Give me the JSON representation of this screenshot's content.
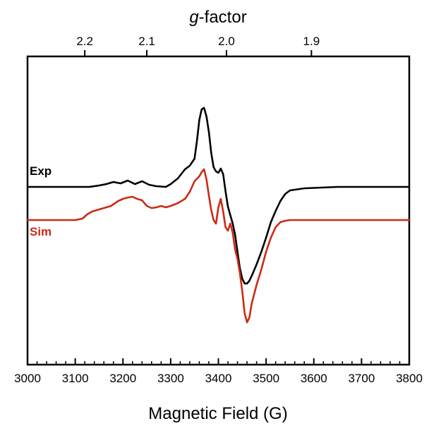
{
  "chart_data": {
    "type": "line",
    "xlabel": "Magnetic Field (G)",
    "x2label_italic": "g",
    "x2label_rest": "-factor",
    "xlim": [
      3000,
      3800
    ],
    "x_ticks": [
      3000,
      3100,
      3200,
      3300,
      3400,
      3500,
      3600,
      3700,
      3800
    ],
    "x_tick_labels": [
      "3000",
      "3100",
      "3200",
      "3300",
      "3400",
      "3500",
      "3600",
      "3700",
      "3800"
    ],
    "g_ticks": [
      2.2,
      2.1,
      2.0,
      1.9
    ],
    "g_tick_labels": [
      "2.2",
      "2.1",
      "2.0",
      "1.9"
    ],
    "g_tick_fields": [
      3120,
      3250,
      3417,
      3595
    ],
    "grid": false,
    "colors": {
      "Exp": "#000000",
      "Sim": "#cc2a14"
    },
    "series": [
      {
        "name": "Exp",
        "x": [
          3000,
          3050,
          3100,
          3130,
          3150,
          3165,
          3180,
          3195,
          3210,
          3225,
          3240,
          3255,
          3270,
          3290,
          3300,
          3315,
          3330,
          3340,
          3350,
          3355,
          3360,
          3365,
          3370,
          3375,
          3380,
          3385,
          3390,
          3395,
          3400,
          3405,
          3410,
          3415,
          3420,
          3425,
          3430,
          3435,
          3440,
          3445,
          3450,
          3455,
          3460,
          3465,
          3470,
          3480,
          3490,
          3500,
          3510,
          3520,
          3530,
          3540,
          3550,
          3580,
          3650,
          3700,
          3800
        ],
        "y": [
          0,
          0,
          0,
          0,
          2,
          4,
          7,
          5,
          9,
          4,
          8,
          3,
          1,
          0,
          4,
          12,
          25,
          30,
          40,
          65,
          95,
          110,
          112,
          100,
          78,
          48,
          28,
          22,
          20,
          26,
          18,
          -6,
          -28,
          -40,
          -52,
          -68,
          -92,
          -115,
          -130,
          -137,
          -137,
          -133,
          -126,
          -110,
          -92,
          -72,
          -50,
          -34,
          -20,
          -10,
          -5,
          -2,
          0,
          0,
          0
        ]
      },
      {
        "name": "Sim",
        "x": [
          3000,
          3100,
          3115,
          3125,
          3135,
          3150,
          3160,
          3175,
          3190,
          3200,
          3210,
          3220,
          3230,
          3240,
          3250,
          3260,
          3270,
          3280,
          3290,
          3300,
          3315,
          3330,
          3340,
          3350,
          3360,
          3365,
          3370,
          3375,
          3380,
          3385,
          3390,
          3395,
          3400,
          3405,
          3410,
          3415,
          3420,
          3425,
          3430,
          3435,
          3440,
          3445,
          3450,
          3455,
          3460,
          3465,
          3470,
          3480,
          3490,
          3500,
          3510,
          3520,
          3530,
          3540,
          3550,
          3600,
          3800
        ],
        "y": [
          0,
          0,
          2,
          8,
          12,
          15,
          17,
          20,
          27,
          30,
          32,
          33,
          30,
          28,
          20,
          17,
          18,
          20,
          18,
          20,
          24,
          30,
          40,
          55,
          62,
          68,
          72,
          58,
          35,
          14,
          0,
          -5,
          18,
          30,
          12,
          -10,
          -15,
          -5,
          -18,
          -42,
          -55,
          -75,
          -100,
          -132,
          -145,
          -138,
          -118,
          -92,
          -70,
          -45,
          -25,
          -10,
          -3,
          -1,
          0,
          0,
          0
        ]
      }
    ]
  }
}
